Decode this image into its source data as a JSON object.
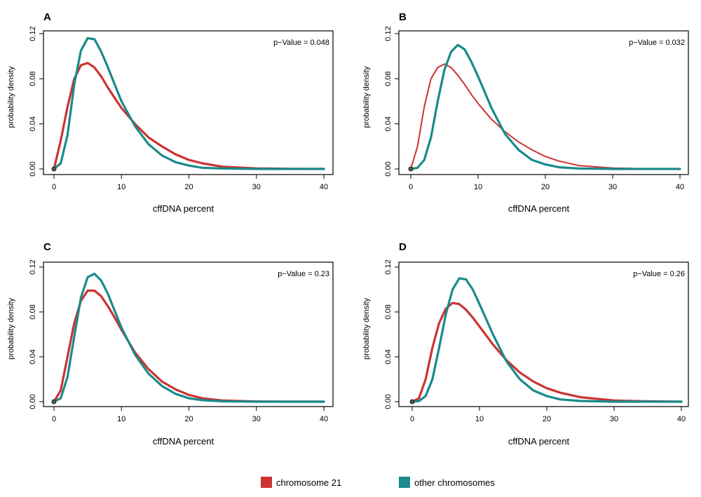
{
  "chart_data": [
    {
      "type": "line",
      "panel": "A",
      "p_value_text": "p−Value = 0.048",
      "xlabel": "cffDNA percent",
      "ylabel": "probability density",
      "xlim": [
        0,
        40
      ],
      "ylim": [
        0,
        0.12
      ],
      "xticks": [
        "0",
        "10",
        "20",
        "30",
        "40"
      ],
      "yticks": [
        "0.00",
        "0.04",
        "0.08",
        "0.12"
      ],
      "x": [
        0,
        1,
        2,
        3,
        4,
        5,
        6,
        7,
        8,
        9,
        10,
        12,
        14,
        16,
        18,
        20,
        22,
        25,
        30,
        35,
        40
      ],
      "series": [
        {
          "name": "chromosome 21",
          "color": "#cc3333",
          "values": [
            0.0,
            0.025,
            0.055,
            0.08,
            0.092,
            0.094,
            0.09,
            0.082,
            0.072,
            0.063,
            0.054,
            0.04,
            0.028,
            0.02,
            0.013,
            0.008,
            0.005,
            0.002,
            0.0005,
            0.0001,
            0.0
          ]
        },
        {
          "name": "other chromosomes",
          "color": "#1a8a8a",
          "values": [
            0.0,
            0.005,
            0.03,
            0.075,
            0.105,
            0.116,
            0.115,
            0.104,
            0.09,
            0.075,
            0.06,
            0.038,
            0.022,
            0.012,
            0.006,
            0.003,
            0.001,
            0.0004,
            0.0,
            0.0,
            0.0
          ]
        }
      ]
    },
    {
      "type": "line",
      "panel": "B",
      "p_value_text": "p−Value = 0.032",
      "xlabel": "cffDNA percent",
      "ylabel": "probability density",
      "xlim": [
        0,
        40
      ],
      "ylim": [
        0,
        0.12
      ],
      "xticks": [
        "0",
        "10",
        "20",
        "30",
        "40"
      ],
      "yticks": [
        "0.00",
        "0.04",
        "0.08",
        "0.12"
      ],
      "x": [
        0,
        1,
        2,
        3,
        4,
        5,
        6,
        7,
        8,
        9,
        10,
        12,
        14,
        16,
        18,
        20,
        22,
        25,
        30,
        35,
        40
      ],
      "series": [
        {
          "name": "chromosome 21",
          "color": "#cc3333",
          "values": [
            0.0,
            0.02,
            0.055,
            0.08,
            0.09,
            0.093,
            0.09,
            0.083,
            0.075,
            0.066,
            0.058,
            0.044,
            0.033,
            0.024,
            0.017,
            0.011,
            0.007,
            0.003,
            0.0008,
            0.0002,
            0.0
          ]
        },
        {
          "name": "other chromosomes",
          "color": "#1a8a8a",
          "values": [
            0.0,
            0.001,
            0.008,
            0.028,
            0.06,
            0.088,
            0.104,
            0.11,
            0.106,
            0.095,
            0.082,
            0.054,
            0.031,
            0.017,
            0.008,
            0.004,
            0.0015,
            0.0004,
            0.0,
            0.0,
            0.0
          ]
        }
      ]
    },
    {
      "type": "line",
      "panel": "C",
      "p_value_text": "p−Value = 0.23",
      "xlabel": "cffDNA percent",
      "ylabel": "probability density",
      "xlim": [
        0,
        40
      ],
      "ylim": [
        0,
        0.12
      ],
      "xticks": [
        "0",
        "10",
        "20",
        "30",
        "40"
      ],
      "yticks": [
        "0.00",
        "0.04",
        "0.08",
        "0.12"
      ],
      "x": [
        0,
        1,
        2,
        3,
        4,
        5,
        6,
        7,
        8,
        9,
        10,
        12,
        14,
        16,
        18,
        20,
        22,
        25,
        30,
        35,
        40
      ],
      "series": [
        {
          "name": "chromosome 21",
          "color": "#cc3333",
          "values": [
            0.0,
            0.01,
            0.04,
            0.07,
            0.09,
            0.099,
            0.099,
            0.094,
            0.085,
            0.075,
            0.064,
            0.044,
            0.029,
            0.018,
            0.011,
            0.006,
            0.003,
            0.001,
            0.0002,
            0.0,
            0.0
          ]
        },
        {
          "name": "other chromosomes",
          "color": "#1a8a8a",
          "values": [
            0.0,
            0.003,
            0.022,
            0.058,
            0.093,
            0.111,
            0.114,
            0.108,
            0.096,
            0.081,
            0.066,
            0.042,
            0.025,
            0.014,
            0.007,
            0.003,
            0.0013,
            0.0003,
            0.0,
            0.0,
            0.0
          ]
        }
      ]
    },
    {
      "type": "line",
      "panel": "D",
      "p_value_text": "p−Value = 0.26",
      "xlabel": "cffDNA percent",
      "ylabel": "probability density",
      "xlim": [
        0,
        40
      ],
      "ylim": [
        0,
        0.12
      ],
      "xticks": [
        "0",
        "10",
        "20",
        "30",
        "40"
      ],
      "yticks": [
        "0.00",
        "0.04",
        "0.08",
        "0.12"
      ],
      "x": [
        0,
        1,
        2,
        3,
        4,
        5,
        6,
        7,
        8,
        9,
        10,
        12,
        14,
        16,
        18,
        20,
        22,
        25,
        30,
        35,
        40
      ],
      "series": [
        {
          "name": "chromosome 21",
          "color": "#cc3333",
          "values": [
            0.0,
            0.003,
            0.02,
            0.048,
            0.07,
            0.083,
            0.088,
            0.087,
            0.082,
            0.075,
            0.067,
            0.051,
            0.037,
            0.026,
            0.018,
            0.012,
            0.008,
            0.004,
            0.001,
            0.0003,
            0.0
          ]
        },
        {
          "name": "other chromosomes",
          "color": "#1a8a8a",
          "values": [
            0.0,
            0.0005,
            0.005,
            0.02,
            0.048,
            0.078,
            0.1,
            0.11,
            0.109,
            0.1,
            0.087,
            0.06,
            0.036,
            0.02,
            0.01,
            0.005,
            0.002,
            0.0006,
            0.0,
            0.0,
            0.0
          ]
        }
      ]
    }
  ],
  "legend": {
    "items": [
      {
        "label": "chromosome 21",
        "color": "#cc3333"
      },
      {
        "label": "other chromosomes",
        "color": "#1a8a8a"
      }
    ]
  }
}
